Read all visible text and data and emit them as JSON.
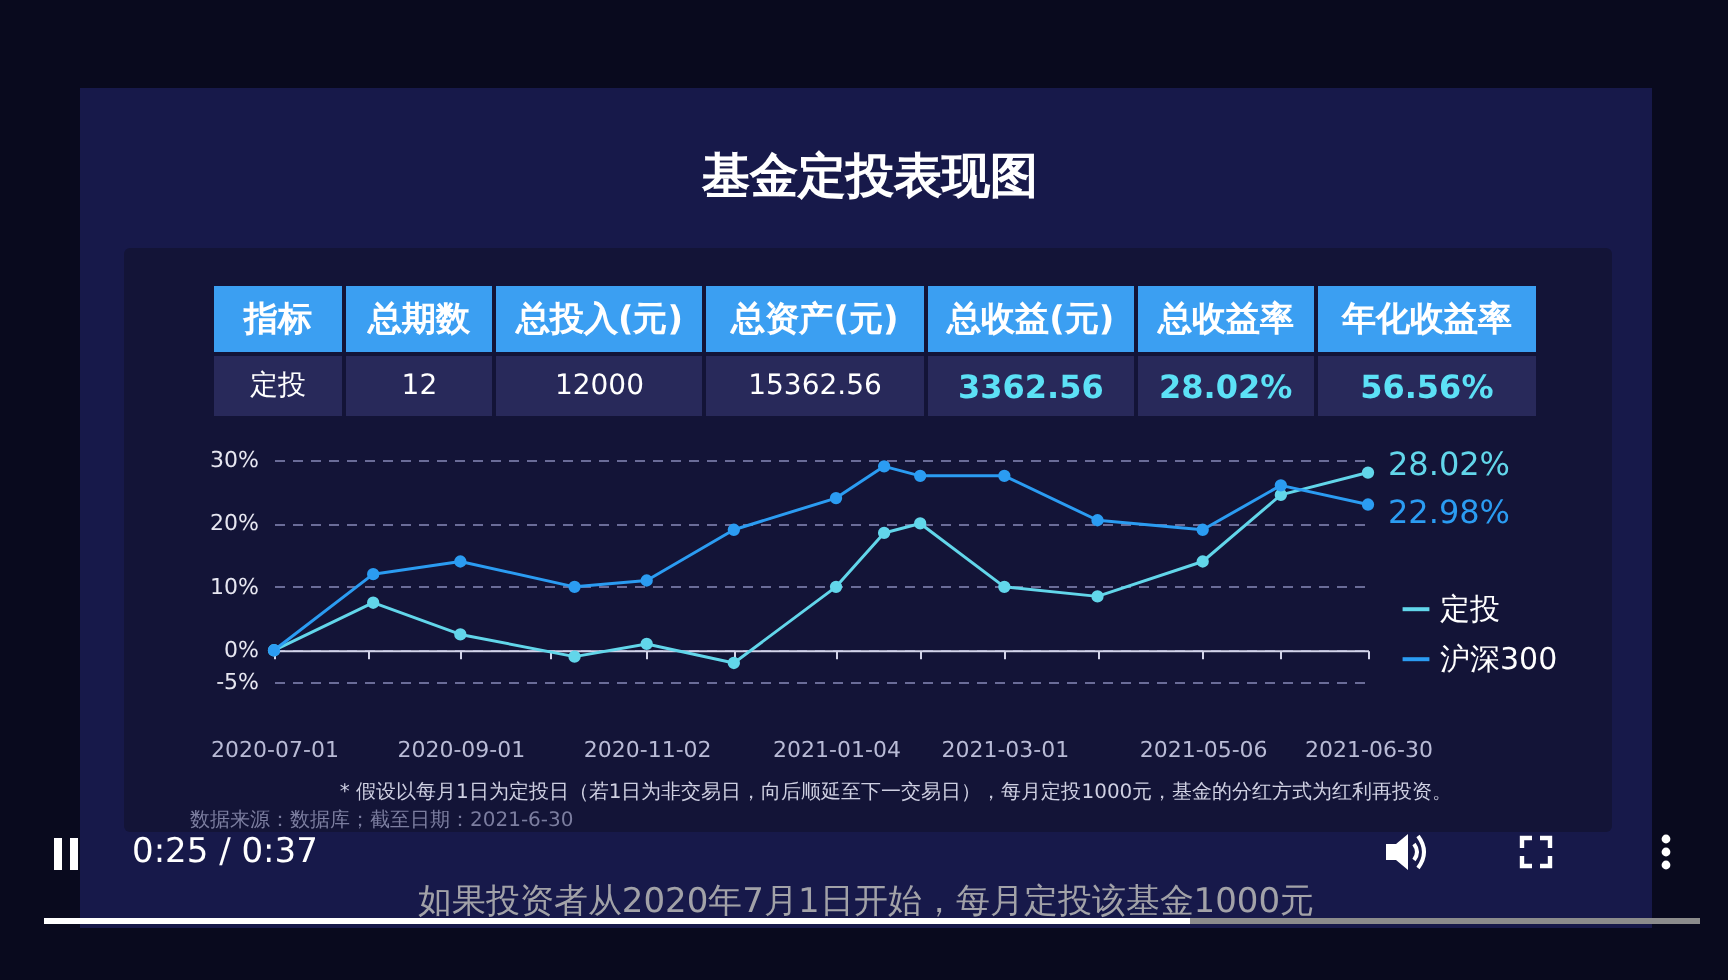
{
  "chart_data": [
    {
      "type": "other",
      "title": "基金定投表现图",
      "categories": [
        "指标",
        "总期数",
        "总投入(元)",
        "总资产(元)",
        "总收益(元)",
        "总收益率",
        "年化收益率"
      ],
      "value_labels": [
        "定投",
        "12",
        "12000",
        "15362.56",
        "3362.56",
        "28.02%",
        "56.56%"
      ],
      "colors": [
        "#3b9ff2",
        "#3b9ff2",
        "#3b9ff2",
        "#3b9ff2",
        "#3b9ff2",
        "#3b9ff2",
        "#3b9ff2"
      ]
    },
    {
      "type": "line",
      "x": [
        "2020-07-01",
        "2020-08-03",
        "2020-09-01",
        "2020-10-09",
        "2020-11-02",
        "2020-12-01",
        "2021-01-04",
        "2021-01-20",
        "2021-02-01",
        "2021-03-01",
        "2021-04-01",
        "2021-05-06",
        "2021-06-01",
        "2021-06-30"
      ],
      "xlim": [
        "2020-07-01",
        "2021-06-30"
      ],
      "xticks": [
        "2020-07-01",
        {
          "value": "2020-08-01",
          "label": null
        },
        "2020-09-01",
        {
          "value": "2020-10-01",
          "label": null
        },
        "2020-11-02",
        {
          "value": "2020-12-01",
          "label": null
        },
        "2021-01-04",
        {
          "value": "2021-02-01",
          "label": null
        },
        "2021-03-01",
        {
          "value": "2021-04-01",
          "label": null
        },
        "2021-05-06",
        {
          "value": "2021-06-01",
          "label": null
        },
        "2021-06-30"
      ],
      "ylim": [
        -5,
        30
      ],
      "yticks": [
        {
          "value": -5,
          "label": "-5%"
        },
        {
          "value": 0,
          "label": "0%"
        },
        {
          "value": 10,
          "label": "10%"
        },
        {
          "value": 20,
          "label": "20%"
        },
        {
          "value": 30,
          "label": "30%"
        }
      ],
      "series": [
        {
          "name": "定投",
          "color": "#62d6ea",
          "values": [
            0,
            7.5,
            2.5,
            -1,
            1,
            -2,
            10,
            18.5,
            20,
            10,
            8.5,
            14,
            24.5,
            28.02
          ],
          "value_labels": [
            null,
            null,
            null,
            null,
            null,
            null,
            null,
            null,
            null,
            null,
            null,
            null,
            null,
            "28.02%"
          ]
        },
        {
          "name": "沪深300",
          "color": "#2b9cf2",
          "values": [
            0,
            12,
            14,
            10,
            11,
            19,
            24,
            29,
            27.5,
            27.5,
            20.5,
            19,
            26,
            22.98
          ],
          "value_labels": [
            null,
            null,
            null,
            null,
            null,
            null,
            null,
            null,
            null,
            null,
            null,
            null,
            null,
            "22.98%"
          ]
        }
      ],
      "grid": "y",
      "legend": "right",
      "marker": "circle",
      "line_style": "solid",
      "annotations": [
        "* 假设以每月1日为定投日（若1日为非交易日，向后顺延至下一交易日），每月定投1000元，基金的分红方式为红利再投资。",
        "数据来源：数据库；截至日期：2021-6-30"
      ]
    },
    {
      "type": "other",
      "annotations": [
        "0:25 / 0:37",
        "如果投资者从2020年7月1日开始，每月定投该基金1000元"
      ]
    }
  ]
}
